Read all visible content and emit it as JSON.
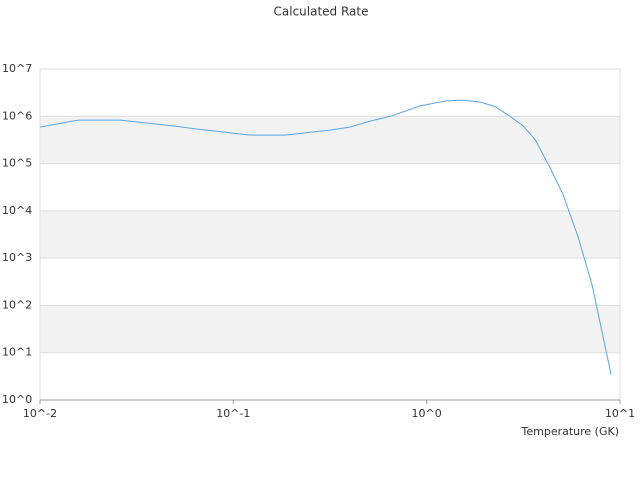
{
  "chart_data": {
    "type": "line",
    "title": "Calculated Rate",
    "x_label": "Temperature (GK)",
    "x": [
      0.01,
      0.0157,
      0.026,
      0.05,
      0.06,
      0.122,
      0.185,
      0.316,
      0.4,
      0.51,
      0.65,
      0.92,
      1.25,
      1.52,
      1.89,
      2.26,
      2.7,
      3.15,
      3.64,
      4.35,
      5.08,
      6.07,
      7.17,
      9.0
    ],
    "series": [
      {
        "color": "#5aa5ea",
        "values": [
          590000,
          830000,
          830000,
          620000,
          560000,
          400000,
          400000,
          510000,
          590000,
          790000,
          1000000,
          1650000,
          2100000,
          2200000,
          2000000,
          1600000,
          1000000,
          630000,
          320000,
          81000,
          22000,
          2800,
          270,
          3.4
        ]
      }
    ],
    "x_log": true,
    "y_log": true,
    "xlim": [
      0.01,
      10
    ],
    "xticks": [
      {
        "value": 0.01,
        "label": "10^-2"
      },
      {
        "value": 0.1,
        "label": "10^-1"
      },
      {
        "value": 1,
        "label": "10^0"
      },
      {
        "value": 10,
        "label": "10^1"
      }
    ],
    "ylim": [
      1,
      10000000
    ],
    "yticks": [
      {
        "value": 1,
        "label": "10^0"
      },
      {
        "value": 10,
        "label": "10^1"
      },
      {
        "value": 100,
        "label": "10^2"
      },
      {
        "value": 1000,
        "label": "10^3"
      },
      {
        "value": 10000,
        "label": "10^4"
      },
      {
        "value": 100000,
        "label": "10^5"
      },
      {
        "value": 1000000,
        "label": "10^6"
      },
      {
        "value": 10000000,
        "label": "10^7"
      }
    ],
    "grid": true,
    "band_color": "#f2f2f2",
    "grid_color": "#dddddd"
  }
}
